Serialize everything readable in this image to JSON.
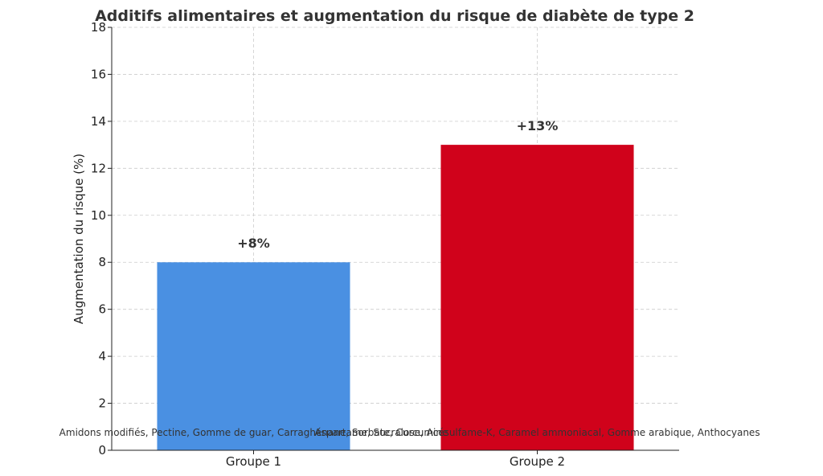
{
  "chart_data": {
    "type": "bar",
    "title": "Additifs alimentaires et augmentation du risque de diabète de type 2",
    "xlabel": "",
    "ylabel": "Augmentation du risque (%)",
    "categories": [
      "Groupe 1",
      "Groupe 2"
    ],
    "values": [
      8,
      13
    ],
    "data_labels": [
      "+8%",
      "+13%"
    ],
    "colors": [
      "#4a90e2",
      "#d0021b"
    ],
    "annotations": [
      "Amidons modifiés, Pectine, Gomme de guar, Carraghénane, Sorbate, Curcumine",
      "Aspartame, Sucralose, Acésulfame-K, Caramel ammoniacal, Gomme arabique, Anthocyanes"
    ],
    "ylim": [
      0,
      18
    ],
    "yticks": [
      0,
      2,
      4,
      6,
      8,
      10,
      12,
      14,
      16,
      18
    ],
    "grid": true
  }
}
